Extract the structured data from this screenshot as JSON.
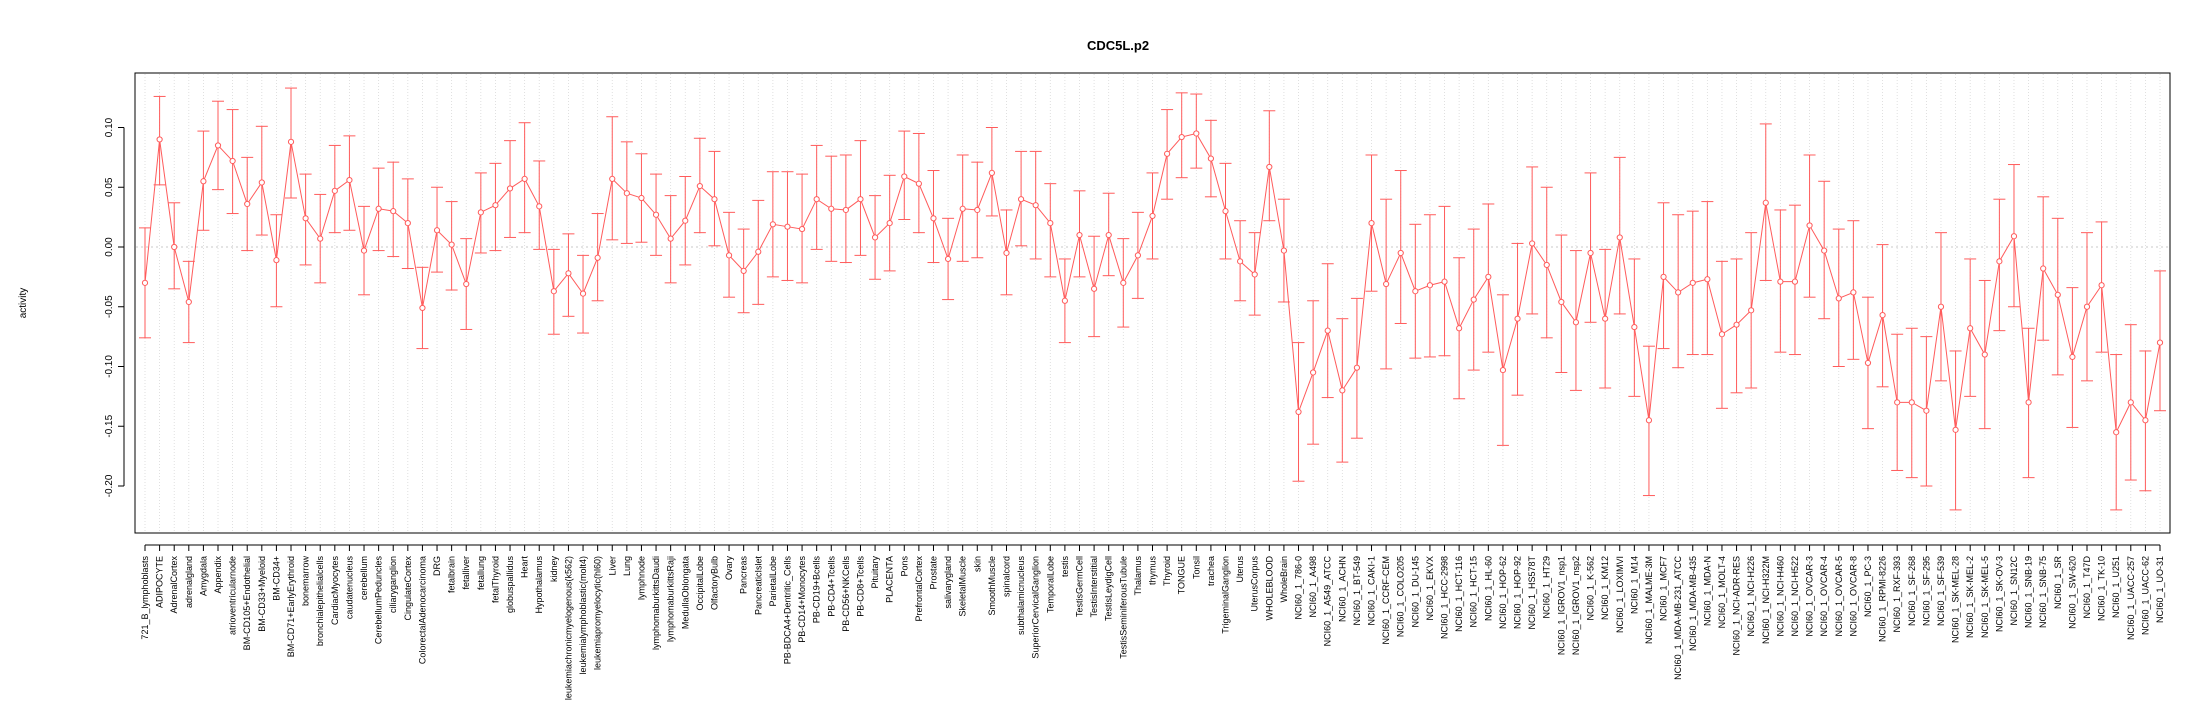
{
  "chart_data": {
    "type": "line",
    "title": "CDC5L.p2",
    "xlabel": "",
    "ylabel": "activity",
    "ylim": [
      -0.235,
      0.145
    ],
    "yticks": [
      0.1,
      0.05,
      0.0,
      -0.05,
      -0.1,
      -0.15,
      -0.2
    ],
    "ytick_labels": [
      "0.10",
      "0.05",
      "0.00",
      "-0.05",
      "-0.10",
      "-0.15",
      "-0.20"
    ],
    "grid": "vertical dotted lines at each category",
    "zero_line": "dotted horizontal at 0",
    "color": "#ff5b5b",
    "categories": [
      "721_B_lymphoblasts",
      "ADIPOCYTE",
      "AdrenalCortex",
      "adrenalgland",
      "Amygdala",
      "Appendix",
      "atrioventricularnode",
      "BM-CD105+Endothelial",
      "BM-CD33+Myeloid",
      "BM-CD34+",
      "BM-CD71+EarlyErythroid",
      "bonemarrow",
      "bronchialepithelialcells",
      "CardiacMyocytes",
      "caudatenucleus",
      "cerebellum",
      "CerebellumPeduncles",
      "ciliaryganglion",
      "CingulateCortex",
      "ColorectalAdenocarcinoma",
      "DRG",
      "fetalbrain",
      "fetalliver",
      "fetallung",
      "fetalThyroid",
      "globuspallidus",
      "Heart",
      "Hypothalamus",
      "kidney",
      "leukemiachronicmyelogenous(k562)",
      "leukemialymphoblastic(molt4)",
      "leukemiapromyelocytic(hl60)",
      "Liver",
      "Lung",
      "lymphnode",
      "lymphomaburkittsDaudi",
      "lymphomaburkittsRaji",
      "MedullaOblongata",
      "OccipitalLobe",
      "OlfactoryBulb",
      "Ovary",
      "Pancreas",
      "PancreaticIslet",
      "ParietalLobe",
      "PB-BDCA4+Dentritic_Cells",
      "PB-CD14+Monocytes",
      "PB-CD19+Bcells",
      "PB-CD4+Tcells",
      "PB-CD56+NKCells",
      "PB-CD8+Tcells",
      "Pituitary",
      "PLACENTA",
      "Pons",
      "PrefrontalCortex",
      "Prostate",
      "salivarygland",
      "SkeletalMuscle",
      "skin",
      "SmoothMuscle",
      "spinalcord",
      "subthalamicnucleus",
      "SuperiorCervicalGanglion",
      "TemporalLobe",
      "testis",
      "TestisGermCell",
      "TestisInterstitial",
      "TestisLeydigCell",
      "TestisSeminiferousTubule",
      "Thalamus",
      "thymus",
      "Thyroid",
      "TONGUE",
      "Tonsil",
      "trachea",
      "TrigeminalGanglion",
      "Uterus",
      "UterusCorpus",
      "WHOLEBLOOD",
      "WholeBrain",
      "NCI60_1_786-0",
      "NCI60_1_A498",
      "NCI60_1_A549_ATCC",
      "NCI60_1_ACHN",
      "NCI60_1_BT-549",
      "NCI60_1_CAKI-1",
      "NCI60_1_CCRF-CEM",
      "NCI60_1_COLO205",
      "NCI60_1_DU-145",
      "NCI60_1_EKVX",
      "NCI60_1_HCC-2998",
      "NCI60_1_HCT-116",
      "NCI60_1_HCT-15",
      "NCI60_1_HL-60",
      "NCI60_1_HOP-62",
      "NCI60_1_HOP-92",
      "NCI60_1_HS578T",
      "NCI60_1_HT29",
      "NCI60_1_IGROV1_nsp1",
      "NCI60_1_IGROV1_nsp2",
      "NCI60_1_K-562",
      "NCI60_1_KM12",
      "NCI60_1_LOXIMVI",
      "NCI60_1_M14",
      "NCI60_1_MALME-3M",
      "NCI60_1_MCF7",
      "NCI60_1_MDA-MB-231_ATCC",
      "NCI60_1_MDA-MB-435",
      "NCI60_1_MDA-N",
      "NCI60_1_MOLT-4",
      "NCI60_1_NCI-ADR-RES",
      "NCI60_1_NCI-H226",
      "NCI60_1_NCI-H322M",
      "NCI60_1_NCI-H460",
      "NCI60_1_NCI-H522",
      "NCI60_1_OVCAR-3",
      "NCI60_1_OVCAR-4",
      "NCI60_1_OVCAR-5",
      "NCI60_1_OVCAR-8",
      "NCI60_1_PC-3",
      "NCI60_1_RPMI-8226",
      "NCI60_1_RXF-393",
      "NCI60_1_SF-268",
      "NCI60_1_SF-295",
      "NCI60_1_SF-539",
      "NCI60_1_SK-MEL-28",
      "NCI60_1_SK-MEL-2",
      "NCI60_1_SK-MEL-5",
      "NCI60_1_SK-OV-3",
      "NCI60_1_SN12C",
      "NCI60_1_SNB-19",
      "NCI60_1_SNB-75",
      "NCI60_1_SR",
      "NCI60_1_SW-620",
      "NCI60_1_T47D",
      "NCI60_1_TK-10",
      "NCI60_1_U251",
      "NCI60_1_UACC-257",
      "NCI60_1_UACC-62",
      "NCI60_1_UO-31"
    ],
    "series": [
      {
        "name": "activity",
        "values": [
          -0.03,
          0.09,
          0.0,
          -0.046,
          0.055,
          0.085,
          0.072,
          0.036,
          0.054,
          -0.011,
          0.088,
          0.024,
          0.007,
          0.047,
          0.056,
          -0.003,
          0.032,
          0.03,
          0.02,
          -0.051,
          0.014,
          0.002,
          -0.031,
          0.029,
          0.035,
          0.049,
          0.057,
          0.034,
          -0.037,
          -0.022,
          -0.039,
          -0.009,
          0.057,
          0.045,
          0.041,
          0.027,
          0.007,
          0.022,
          0.051,
          0.04,
          -0.007,
          -0.02,
          -0.004,
          0.019,
          0.017,
          0.015,
          0.04,
          0.032,
          0.031,
          0.04,
          0.008,
          0.02,
          0.059,
          0.053,
          0.024,
          -0.01,
          0.032,
          0.031,
          0.062,
          -0.005,
          0.04,
          0.035,
          0.02,
          -0.045,
          0.01,
          -0.035,
          0.01,
          -0.03,
          -0.007,
          0.026,
          0.078,
          0.092,
          0.095,
          0.074,
          0.03,
          -0.012,
          -0.023,
          0.067,
          -0.003,
          -0.138,
          -0.105,
          -0.07,
          -0.12,
          -0.101,
          0.02,
          -0.031,
          -0.005,
          -0.037,
          -0.032,
          -0.029,
          -0.068,
          -0.044,
          -0.025,
          -0.103,
          -0.06,
          0.003,
          -0.015,
          -0.046,
          -0.063,
          -0.005,
          -0.06,
          0.008,
          -0.067,
          -0.145,
          -0.025,
          -0.038,
          -0.03,
          -0.027,
          -0.073,
          -0.065,
          -0.053,
          0.037,
          -0.029,
          -0.029,
          0.018,
          -0.003,
          -0.043,
          -0.038,
          -0.097,
          -0.057,
          -0.13,
          -0.13,
          -0.137,
          -0.05,
          -0.153,
          -0.068,
          -0.09,
          -0.012,
          0.009,
          -0.13,
          -0.018,
          -0.04,
          -0.092,
          -0.05,
          -0.032,
          -0.155,
          -0.13,
          -0.145,
          -0.08
        ],
        "ci_low": [
          -0.076,
          0.052,
          -0.035,
          -0.08,
          0.014,
          0.048,
          0.028,
          -0.003,
          0.01,
          -0.05,
          0.041,
          -0.015,
          -0.03,
          0.012,
          0.014,
          -0.04,
          -0.003,
          -0.008,
          -0.018,
          -0.085,
          -0.021,
          -0.036,
          -0.069,
          -0.005,
          -0.003,
          0.008,
          0.012,
          -0.002,
          -0.073,
          -0.058,
          -0.072,
          -0.045,
          0.006,
          0.003,
          0.004,
          -0.007,
          -0.03,
          -0.015,
          0.012,
          0.001,
          -0.042,
          -0.055,
          -0.048,
          -0.025,
          -0.028,
          -0.03,
          -0.002,
          -0.012,
          -0.013,
          -0.007,
          -0.027,
          -0.02,
          0.023,
          0.012,
          -0.013,
          -0.044,
          -0.012,
          -0.009,
          0.026,
          -0.04,
          0.001,
          -0.01,
          -0.025,
          -0.08,
          -0.025,
          -0.075,
          -0.024,
          -0.067,
          -0.043,
          -0.01,
          0.04,
          0.058,
          0.066,
          0.042,
          -0.01,
          -0.045,
          -0.057,
          0.022,
          -0.046,
          -0.196,
          -0.165,
          -0.126,
          -0.18,
          -0.16,
          -0.037,
          -0.102,
          -0.064,
          -0.093,
          -0.092,
          -0.091,
          -0.127,
          -0.103,
          -0.088,
          -0.166,
          -0.124,
          -0.056,
          -0.076,
          -0.105,
          -0.12,
          -0.063,
          -0.118,
          -0.056,
          -0.125,
          -0.208,
          -0.085,
          -0.101,
          -0.09,
          -0.09,
          -0.135,
          -0.122,
          -0.118,
          -0.028,
          -0.088,
          -0.09,
          -0.042,
          -0.06,
          -0.1,
          -0.094,
          -0.152,
          -0.117,
          -0.187,
          -0.193,
          -0.2,
          -0.112,
          -0.22,
          -0.125,
          -0.152,
          -0.07,
          -0.05,
          -0.193,
          -0.078,
          -0.107,
          -0.151,
          -0.112,
          -0.088,
          -0.22,
          -0.195,
          -0.204,
          -0.137
        ],
        "ci_high": [
          0.016,
          0.126,
          0.037,
          -0.012,
          0.097,
          0.122,
          0.115,
          0.075,
          0.101,
          0.027,
          0.133,
          0.061,
          0.044,
          0.085,
          0.093,
          0.034,
          0.066,
          0.071,
          0.057,
          -0.017,
          0.05,
          0.038,
          0.007,
          0.062,
          0.07,
          0.089,
          0.104,
          0.072,
          -0.002,
          0.011,
          -0.007,
          0.028,
          0.109,
          0.088,
          0.078,
          0.061,
          0.043,
          0.059,
          0.091,
          0.08,
          0.029,
          0.015,
          0.039,
          0.063,
          0.063,
          0.061,
          0.085,
          0.076,
          0.077,
          0.089,
          0.043,
          0.06,
          0.097,
          0.095,
          0.064,
          0.024,
          0.077,
          0.071,
          0.1,
          0.031,
          0.08,
          0.08,
          0.053,
          -0.01,
          0.047,
          0.009,
          0.045,
          0.007,
          0.029,
          0.062,
          0.115,
          0.129,
          0.128,
          0.106,
          0.07,
          0.022,
          0.012,
          0.114,
          0.04,
          -0.08,
          -0.045,
          -0.014,
          -0.06,
          -0.043,
          0.077,
          0.04,
          0.064,
          0.019,
          0.027,
          0.034,
          -0.009,
          0.015,
          0.036,
          -0.04,
          0.003,
          0.067,
          0.05,
          0.01,
          -0.003,
          0.062,
          -0.002,
          0.075,
          -0.01,
          -0.083,
          0.037,
          0.027,
          0.03,
          0.038,
          -0.012,
          -0.01,
          0.012,
          0.103,
          0.031,
          0.035,
          0.077,
          0.055,
          0.015,
          0.022,
          -0.042,
          0.002,
          -0.073,
          -0.068,
          -0.075,
          0.012,
          -0.087,
          -0.01,
          -0.028,
          0.04,
          0.069,
          -0.068,
          0.042,
          0.024,
          -0.034,
          0.012,
          0.021,
          -0.09,
          -0.065,
          -0.087,
          -0.02
        ]
      }
    ]
  }
}
